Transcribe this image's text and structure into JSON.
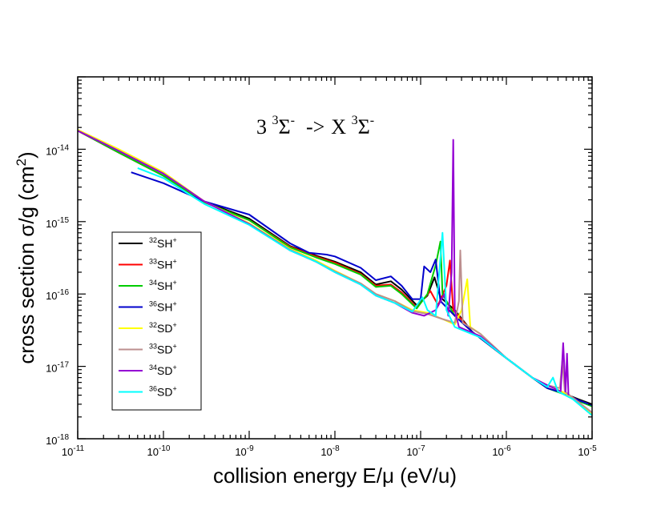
{
  "chart_data": {
    "type": "line",
    "xscale": "log",
    "yscale": "log",
    "xlim": [
      1e-11,
      1e-05
    ],
    "ylim": [
      1e-18,
      1e-13
    ],
    "xlabel": "collision energy E/μ (eV/u)",
    "ylabel_main": "cross section σ/g (cm",
    "ylabel_sup": "2",
    "ylabel_end": ")",
    "annotation": {
      "pre_sup": "3",
      "pre_base": "3 ",
      "pre_sigma": "Σ",
      "pre_sigma_sup": "-",
      "arrow": "->",
      "post_base": "X ",
      "post_sup": "3",
      "post_sigma": "Σ",
      "post_sigma_sup": "-"
    },
    "xticks": [
      {
        "base": "10",
        "exp": "-11",
        "value": 1e-11
      },
      {
        "base": "10",
        "exp": "-10",
        "value": 1e-10
      },
      {
        "base": "10",
        "exp": "-9",
        "value": 1e-09
      },
      {
        "base": "10",
        "exp": "-8",
        "value": 1e-08
      },
      {
        "base": "10",
        "exp": "-7",
        "value": 1e-07
      },
      {
        "base": "10",
        "exp": "-6",
        "value": 1e-06
      },
      {
        "base": "10",
        "exp": "-5",
        "value": 1e-05
      }
    ],
    "yticks": [
      {
        "base": "10",
        "exp": "-18",
        "value": 1e-18
      },
      {
        "base": "10",
        "exp": "-17",
        "value": 1e-17
      },
      {
        "base": "10",
        "exp": "-16",
        "value": 1e-16
      },
      {
        "base": "10",
        "exp": "-15",
        "value": 1e-15
      },
      {
        "base": "10",
        "exp": "-14",
        "value": 1e-14
      }
    ],
    "series": [
      {
        "id": "32SH",
        "mass": "32",
        "mol": "SH",
        "charge": "+",
        "color": "#000000",
        "points": [
          [
            1e-11,
            1.8e-14
          ],
          [
            3e-11,
            9e-15
          ],
          [
            1e-10,
            4.3e-15
          ],
          [
            3e-10,
            1.9e-15
          ],
          [
            1e-09,
            1.1e-15
          ],
          [
            3e-09,
            4.6e-16
          ],
          [
            6e-09,
            3.4e-16
          ],
          [
            1e-08,
            2.8e-16
          ],
          [
            2e-08,
            2e-16
          ],
          [
            3e-08,
            1.35e-16
          ],
          [
            4.5e-08,
            1.5e-16
          ],
          [
            6e-08,
            1.15e-16
          ],
          [
            9e-08,
            7e-17
          ],
          [
            1.2e-07,
            9.5e-17
          ],
          [
            1.45e-07,
            1.7e-16
          ],
          [
            1.7e-07,
            9e-17
          ],
          [
            2.5e-07,
            6e-17
          ],
          [
            4e-07,
            3e-17
          ],
          [
            1e-06,
            1.3e-17
          ],
          [
            2e-06,
            7e-18
          ],
          [
            3e-06,
            5e-18
          ],
          [
            4.5e-06,
            4.3e-18
          ],
          [
            7e-06,
            3.5e-18
          ],
          [
            1e-05,
            3e-18
          ]
        ]
      },
      {
        "id": "33SH",
        "mass": "33",
        "mol": "SH",
        "charge": "+",
        "color": "#ff0000",
        "points": [
          [
            1e-11,
            1.8e-14
          ],
          [
            3e-11,
            9e-15
          ],
          [
            1e-10,
            4.3e-15
          ],
          [
            3e-10,
            1.85e-15
          ],
          [
            1e-09,
            1.05e-15
          ],
          [
            3e-09,
            4.5e-16
          ],
          [
            6e-09,
            3.3e-16
          ],
          [
            1e-08,
            2.7e-16
          ],
          [
            2e-08,
            1.9e-16
          ],
          [
            3e-08,
            1.3e-16
          ],
          [
            4.5e-08,
            1.35e-16
          ],
          [
            6e-08,
            1.05e-16
          ],
          [
            9e-08,
            6.5e-17
          ],
          [
            1.3e-07,
            1.1e-16
          ],
          [
            1.6e-07,
            7e-17
          ],
          [
            2e-07,
            1.3e-16
          ],
          [
            2.2e-07,
            2.9e-16
          ],
          [
            2.4e-07,
            6e-17
          ],
          [
            4e-07,
            3e-17
          ],
          [
            1e-06,
            1.3e-17
          ],
          [
            2e-06,
            7e-18
          ],
          [
            3e-06,
            5e-18
          ],
          [
            4.5e-06,
            4.3e-18
          ],
          [
            7e-06,
            3.4e-18
          ],
          [
            1e-05,
            2.9e-18
          ]
        ]
      },
      {
        "id": "34SH",
        "mass": "34",
        "mol": "SH",
        "charge": "+",
        "color": "#00cc00",
        "points": [
          [
            1e-11,
            1.8e-14
          ],
          [
            3e-11,
            9e-15
          ],
          [
            1e-10,
            4.3e-15
          ],
          [
            3e-10,
            1.85e-15
          ],
          [
            1e-09,
            1.05e-15
          ],
          [
            3e-09,
            4.4e-16
          ],
          [
            6e-09,
            3.2e-16
          ],
          [
            1e-08,
            2.6e-16
          ],
          [
            2e-08,
            1.85e-16
          ],
          [
            3e-08,
            1.25e-16
          ],
          [
            4.5e-08,
            1.3e-16
          ],
          [
            6e-08,
            1e-16
          ],
          [
            9e-08,
            6.3e-17
          ],
          [
            1.2e-07,
            1e-16
          ],
          [
            1.5e-07,
            2.5e-16
          ],
          [
            1.7e-07,
            5.3e-16
          ],
          [
            1.8e-07,
            1e-16
          ],
          [
            2.5e-07,
            5e-17
          ],
          [
            4e-07,
            3e-17
          ],
          [
            1e-06,
            1.3e-17
          ],
          [
            2e-06,
            7e-18
          ],
          [
            3e-06,
            5e-18
          ],
          [
            4.5e-06,
            4.2e-18
          ],
          [
            7e-06,
            3.3e-18
          ],
          [
            1e-05,
            2.8e-18
          ]
        ]
      },
      {
        "id": "36SH",
        "mass": "36",
        "mol": "SH",
        "charge": "+",
        "color": "#0000cc",
        "points": [
          [
            4.2e-11,
            4.8e-15
          ],
          [
            1e-10,
            3.4e-15
          ],
          [
            3e-10,
            1.9e-15
          ],
          [
            1e-09,
            1.25e-15
          ],
          [
            3e-09,
            5e-16
          ],
          [
            5e-09,
            3.7e-16
          ],
          [
            8e-09,
            3.5e-16
          ],
          [
            1e-08,
            3.3e-16
          ],
          [
            2e-08,
            2.3e-16
          ],
          [
            3e-08,
            1.55e-16
          ],
          [
            4.5e-08,
            1.75e-16
          ],
          [
            6e-08,
            1.3e-16
          ],
          [
            8e-08,
            8.5e-17
          ],
          [
            1e-07,
            8.5e-17
          ],
          [
            1.1e-07,
            2.4e-16
          ],
          [
            1.3e-07,
            2e-16
          ],
          [
            1.5e-07,
            3e-16
          ],
          [
            1.7e-07,
            8e-17
          ],
          [
            2.5e-07,
            5e-17
          ],
          [
            4e-07,
            3e-17
          ],
          [
            1e-06,
            1.3e-17
          ],
          [
            2e-06,
            7e-18
          ],
          [
            3e-06,
            5e-18
          ],
          [
            4.5e-06,
            4.3e-18
          ],
          [
            7e-06,
            3.4e-18
          ],
          [
            1e-05,
            2.9e-18
          ]
        ]
      },
      {
        "id": "32SD",
        "mass": "32",
        "mol": "SD",
        "charge": "+",
        "color": "#ffff00",
        "points": [
          [
            1e-11,
            1.85e-14
          ],
          [
            3e-11,
            1e-14
          ],
          [
            1e-10,
            4.8e-15
          ],
          [
            3e-10,
            1.9e-15
          ],
          [
            1e-09,
            9.5e-16
          ],
          [
            3e-09,
            4.2e-16
          ],
          [
            6e-09,
            2.9e-16
          ],
          [
            1e-08,
            2.1e-16
          ],
          [
            2e-08,
            1.4e-16
          ],
          [
            3e-08,
            1e-16
          ],
          [
            5e-08,
            8e-17
          ],
          [
            8e-08,
            6e-17
          ],
          [
            1.2e-07,
            5.5e-17
          ],
          [
            1.8e-07,
            4.5e-17
          ],
          [
            2.5e-07,
            3.8e-17
          ],
          [
            3e-07,
            6e-17
          ],
          [
            3.5e-07,
            1.6e-16
          ],
          [
            3.8e-07,
            3.5e-17
          ],
          [
            5e-07,
            2.8e-17
          ],
          [
            1e-06,
            1.3e-17
          ],
          [
            2e-06,
            7e-18
          ],
          [
            3e-06,
            5.5e-18
          ],
          [
            5e-06,
            4.2e-18
          ],
          [
            1e-05,
            2.2e-18
          ]
        ]
      },
      {
        "id": "33SD",
        "mass": "33",
        "mol": "SD",
        "charge": "+",
        "color": "#bc8f8f",
        "points": [
          [
            1e-11,
            1.8e-14
          ],
          [
            3e-11,
            9.5e-15
          ],
          [
            1e-10,
            4.6e-15
          ],
          [
            3e-10,
            1.9e-15
          ],
          [
            1e-09,
            9.3e-16
          ],
          [
            3e-09,
            4.1e-16
          ],
          [
            6e-09,
            2.8e-16
          ],
          [
            1e-08,
            2.05e-16
          ],
          [
            2e-08,
            1.4e-16
          ],
          [
            3e-08,
            1e-16
          ],
          [
            5e-08,
            8e-17
          ],
          [
            8e-08,
            5.8e-17
          ],
          [
            1.2e-07,
            5.3e-17
          ],
          [
            1.8e-07,
            4.5e-17
          ],
          [
            2.5e-07,
            4e-17
          ],
          [
            2.8e-07,
            8e-17
          ],
          [
            2.9e-07,
            4e-16
          ],
          [
            3.1e-07,
            4e-17
          ],
          [
            5e-07,
            2.8e-17
          ],
          [
            1e-06,
            1.3e-17
          ],
          [
            2e-06,
            7e-18
          ],
          [
            3e-06,
            5.5e-18
          ],
          [
            4.2e-06,
            5e-18
          ],
          [
            4.5e-06,
            1.2e-17
          ],
          [
            4.8e-06,
            4.5e-18
          ],
          [
            1e-05,
            2.3e-18
          ]
        ]
      },
      {
        "id": "34SD",
        "mass": "34",
        "mol": "SD",
        "charge": "+",
        "color": "#9400d3",
        "points": [
          [
            1e-11,
            1.8e-14
          ],
          [
            3e-11,
            9.5e-15
          ],
          [
            1e-10,
            4.6e-15
          ],
          [
            3e-10,
            1.9e-15
          ],
          [
            1e-09,
            9.2e-16
          ],
          [
            3e-09,
            4e-16
          ],
          [
            6e-09,
            2.8e-16
          ],
          [
            1e-08,
            2e-16
          ],
          [
            2e-08,
            1.35e-16
          ],
          [
            3e-08,
            9.5e-17
          ],
          [
            5e-08,
            7.5e-17
          ],
          [
            8e-08,
            5.5e-17
          ],
          [
            1.1e-07,
            5e-17
          ],
          [
            1.5e-07,
            6e-17
          ],
          [
            1.9e-07,
            1e-16
          ],
          [
            2.1e-07,
            5e-17
          ],
          [
            2.3e-07,
            2e-16
          ],
          [
            2.4e-07,
            1.35e-14
          ],
          [
            2.5e-07,
            6e-17
          ],
          [
            2.8e-07,
            3.5e-17
          ],
          [
            5e-07,
            2.6e-17
          ],
          [
            1e-06,
            1.3e-17
          ],
          [
            2e-06,
            7e-18
          ],
          [
            3e-06,
            5.5e-18
          ],
          [
            4.3e-06,
            4.5e-18
          ],
          [
            4.6e-06,
            2.1e-17
          ],
          [
            4.9e-06,
            4.5e-18
          ],
          [
            5.1e-06,
            1.5e-17
          ],
          [
            5.3e-06,
            4e-18
          ]
        ]
      },
      {
        "id": "36SD",
        "mass": "36",
        "mol": "SD",
        "charge": "+",
        "color": "#00ffff",
        "points": [
          [
            5e-11,
            5.5e-15
          ],
          [
            1e-10,
            4e-15
          ],
          [
            3e-10,
            1.75e-15
          ],
          [
            1e-09,
            9e-16
          ],
          [
            3e-09,
            4e-16
          ],
          [
            6e-09,
            2.8e-16
          ],
          [
            1e-08,
            2e-16
          ],
          [
            2e-08,
            1.35e-16
          ],
          [
            3e-08,
            9.5e-17
          ],
          [
            5e-08,
            7.5e-17
          ],
          [
            8e-08,
            5.7e-17
          ],
          [
            1.05e-07,
            9e-17
          ],
          [
            1.2e-07,
            6e-17
          ],
          [
            1.5e-07,
            5e-17
          ],
          [
            1.8e-07,
            7e-16
          ],
          [
            2e-07,
            6e-17
          ],
          [
            2.5e-07,
            3.5e-17
          ],
          [
            5e-07,
            2.5e-17
          ],
          [
            1e-06,
            1.3e-17
          ],
          [
            2e-06,
            7e-18
          ],
          [
            3e-06,
            5.2e-18
          ],
          [
            3.5e-06,
            7e-18
          ],
          [
            4e-06,
            4.5e-18
          ],
          [
            6e-06,
            3.5e-18
          ],
          [
            1e-05,
            2.1e-18
          ]
        ]
      }
    ],
    "legend_position": "lower-left"
  }
}
